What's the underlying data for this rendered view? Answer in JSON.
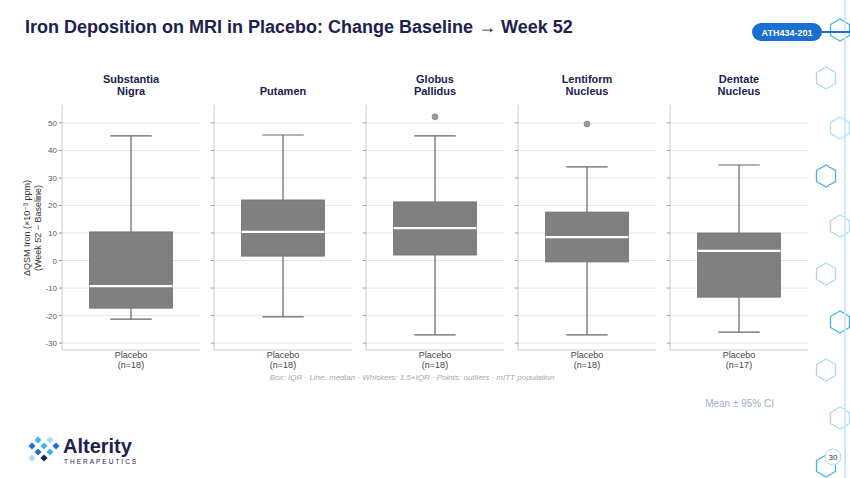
{
  "page": {
    "title": "Iron Deposition on MRI in Placebo: Change Baseline → Week 52",
    "badge": "ATH434-201",
    "legend_note": "Box: IQR · Line: median · Whiskers: 1.5×IQR · Points: outliers · mITT population",
    "corner_note": "Mean ± 95% CI",
    "logo": "Alterity",
    "logo_sub": "THERAPEUTICS",
    "page_number": "30"
  },
  "chart_data": [
    {
      "type": "box",
      "title": "Substantia Nigra",
      "ylabel": "ΔQSM Iron (×10⁻³ ppm)\n(Week 52 − Baseline)",
      "categories": [
        "Placebo\n(n=18)"
      ],
      "boxes": [
        {
          "low": -21.3,
          "q1": -17.3,
          "median": -9.3,
          "q3": 10.4,
          "high": 45.3,
          "outliers": []
        }
      ],
      "color": "#808080",
      "ylim": [
        -32.5,
        56.5
      ],
      "yticks": [
        -30,
        -20,
        -10,
        0,
        10,
        20,
        30,
        40,
        50
      ],
      "grid": true
    },
    {
      "type": "box",
      "title": "Putamen",
      "categories": [
        "Placebo\n(n=18)"
      ],
      "boxes": [
        {
          "low": -20.5,
          "q1": 1.6,
          "median": 10.4,
          "q3": 22,
          "high": 45.6,
          "outliers": []
        }
      ],
      "color": "#808080",
      "ylim": [
        -32.5,
        56.5
      ],
      "yticks": [
        -30,
        -20,
        -10,
        0,
        10,
        20,
        30,
        40,
        50
      ],
      "grid": true,
      "tick_labels": "x"
    },
    {
      "type": "box",
      "title": "Globus Pallidus",
      "categories": [
        "Placebo\n(n=18)"
      ],
      "boxes": [
        {
          "low": -27,
          "q1": 2,
          "median": 11.8,
          "q3": 21.3,
          "high": 45.3,
          "outliers": [
            52.2
          ]
        }
      ],
      "color": "#808080",
      "ylim": [
        -32.5,
        56.5
      ],
      "yticks": [
        -30,
        -20,
        -10,
        0,
        10,
        20,
        30,
        40,
        50
      ],
      "grid": true,
      "tick_labels": "x"
    },
    {
      "type": "box",
      "title": "Lentiform Nucleus",
      "categories": [
        "Placebo\n(n=18)"
      ],
      "boxes": [
        {
          "low": -27,
          "q1": -0.5,
          "median": 8.5,
          "q3": 17.6,
          "high": 34,
          "outliers": [
            49.6
          ]
        }
      ],
      "color": "#808080",
      "ylim": [
        -32.5,
        56.5
      ],
      "yticks": [
        -30,
        -20,
        -10,
        0,
        10,
        20,
        30,
        40,
        50
      ],
      "grid": true,
      "tick_labels": "x"
    },
    {
      "type": "box",
      "title": "Dentate Nucleus",
      "categories": [
        "Placebo\n(n=17)"
      ],
      "boxes": [
        {
          "low": -26,
          "q1": -13.3,
          "median": 3.5,
          "q3": 10,
          "high": 34.7,
          "outliers": []
        }
      ],
      "color": "#808080",
      "ylim": [
        -32.5,
        56.5
      ],
      "yticks": [
        -30,
        -20,
        -10,
        0,
        10,
        20,
        30,
        40,
        50
      ],
      "grid": true,
      "tick_labels": "x"
    }
  ]
}
